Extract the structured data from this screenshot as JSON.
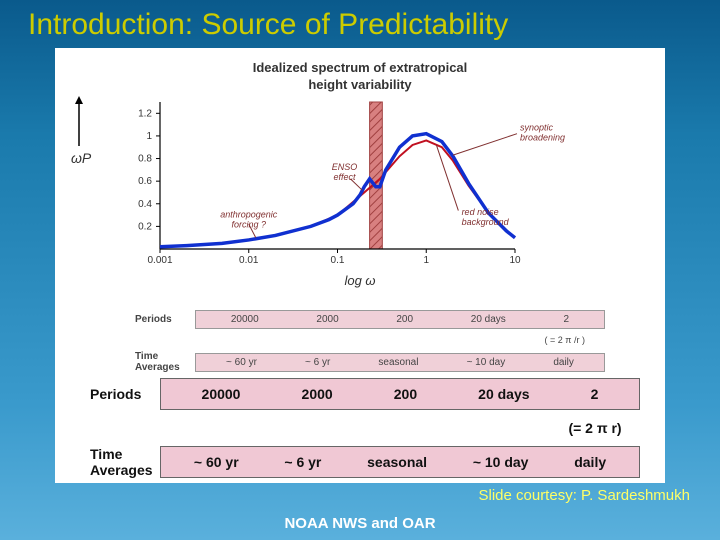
{
  "slide": {
    "title": "Introduction: Source of Predictability",
    "footer_center": "NOAA NWS and OAR",
    "footer_right": "Slide courtesy: P. Sardeshmukh"
  },
  "chart": {
    "type": "line",
    "title_line1": "Idealized spectrum of extratropical",
    "title_line2": "height variability",
    "xlabel": "log ω",
    "ylabel": "ωP",
    "xscale": "log",
    "xlim": [
      0.001,
      10
    ],
    "ylim": [
      0,
      1.3
    ],
    "xticks": [
      0.001,
      0.01,
      0.1,
      1,
      10
    ],
    "xtick_labels": [
      "0.001",
      "0.01",
      "0.1",
      "1",
      "10"
    ],
    "yticks": [
      0.2,
      0.4,
      0.6,
      0.8,
      1,
      1.2
    ],
    "ytick_labels": [
      "0.2",
      "0.4",
      "0.6",
      "0.8",
      "1",
      "1.2"
    ],
    "background_color": "#ffffff",
    "grid_color": "#e0e0e0",
    "axis_color": "#000000",
    "series": {
      "blue_line": {
        "color": "#1030d0",
        "width": 3.5,
        "points": [
          [
            0.001,
            0.02
          ],
          [
            0.002,
            0.03
          ],
          [
            0.005,
            0.05
          ],
          [
            0.01,
            0.08
          ],
          [
            0.02,
            0.12
          ],
          [
            0.05,
            0.2
          ],
          [
            0.08,
            0.26
          ],
          [
            0.1,
            0.3
          ],
          [
            0.15,
            0.4
          ],
          [
            0.18,
            0.48
          ],
          [
            0.2,
            0.55
          ],
          [
            0.23,
            0.62
          ],
          [
            0.27,
            0.55
          ],
          [
            0.3,
            0.55
          ],
          [
            0.35,
            0.7
          ],
          [
            0.5,
            0.9
          ],
          [
            0.7,
            1.0
          ],
          [
            1.0,
            1.02
          ],
          [
            1.5,
            0.95
          ],
          [
            2.0,
            0.82
          ],
          [
            3.0,
            0.58
          ],
          [
            5.0,
            0.32
          ],
          [
            8.0,
            0.16
          ],
          [
            10.0,
            0.1
          ]
        ]
      },
      "red_line": {
        "color": "#c01020",
        "width": 2,
        "points": [
          [
            0.001,
            0.02
          ],
          [
            0.002,
            0.03
          ],
          [
            0.005,
            0.05
          ],
          [
            0.01,
            0.08
          ],
          [
            0.02,
            0.12
          ],
          [
            0.05,
            0.2
          ],
          [
            0.1,
            0.3
          ],
          [
            0.2,
            0.5
          ],
          [
            0.3,
            0.62
          ],
          [
            0.5,
            0.82
          ],
          [
            0.7,
            0.92
          ],
          [
            1.0,
            0.96
          ],
          [
            1.5,
            0.9
          ],
          [
            2.0,
            0.78
          ],
          [
            3.0,
            0.56
          ],
          [
            5.0,
            0.32
          ],
          [
            8.0,
            0.16
          ],
          [
            10.0,
            0.1
          ]
        ]
      }
    },
    "hatched_band": {
      "x_range": [
        0.23,
        0.32
      ],
      "fill": "#d88080",
      "border": "#a04040"
    },
    "annotations": {
      "anthro": "anthropogenic\nforcing ?",
      "enso": "ENSO\neffect",
      "synoptic": "synoptic\nbroadening",
      "rednoise": "red noise\nbackground"
    }
  },
  "small_table": {
    "periods_label": "Periods",
    "periods": [
      "20000",
      "2000",
      "200",
      "20 days",
      "2"
    ],
    "formula": "( = 2 π /r )",
    "avgs_label": "Time\nAverages",
    "avgs": [
      "~ 60 yr",
      "~ 6 yr",
      "seasonal",
      "~ 10 day",
      "daily"
    ]
  },
  "big_table": {
    "periods_label": "Periods",
    "periods": [
      "20000",
      "2000",
      "200",
      "20 days",
      "2"
    ],
    "formula": "(= 2 π r)",
    "avgs_label": "Time\nAverages",
    "avgs": [
      "~ 60 yr",
      "~ 6 yr",
      "seasonal",
      "~ 10 day",
      "daily"
    ]
  },
  "styling": {
    "title_color": "#cccc00",
    "title_fontsize": 30,
    "pink_small": "#f0d0d8",
    "pink_big": "#f0c8d4"
  }
}
